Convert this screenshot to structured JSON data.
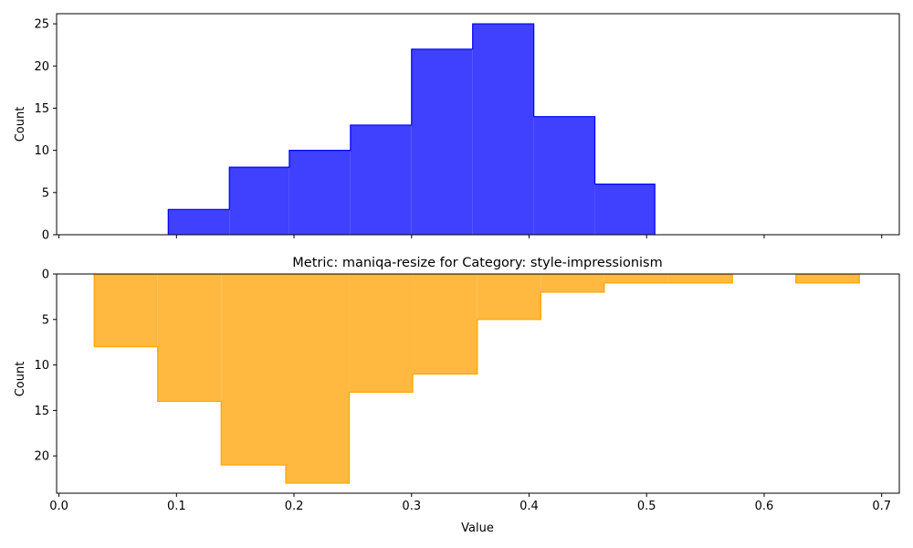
{
  "chart_data": [
    {
      "type": "histogram-step",
      "panel": "top",
      "title": "",
      "xlabel": "",
      "ylabel": "Count",
      "xlim": [
        -0.002,
        0.715
      ],
      "ylim": [
        0,
        26.2
      ],
      "yticks": [
        0,
        5,
        10,
        15,
        20,
        25
      ],
      "y_inverted": false,
      "xticks_labels_visible": false,
      "fill_color": "#4040ff",
      "edge_color": "#0000ff",
      "bins": [
        {
          "x0": 0.093,
          "x1": 0.145,
          "count": 3
        },
        {
          "x0": 0.145,
          "x1": 0.196,
          "count": 8
        },
        {
          "x0": 0.196,
          "x1": 0.248,
          "count": 10
        },
        {
          "x0": 0.248,
          "x1": 0.3,
          "count": 13
        },
        {
          "x0": 0.3,
          "x1": 0.352,
          "count": 22
        },
        {
          "x0": 0.352,
          "x1": 0.404,
          "count": 25
        },
        {
          "x0": 0.404,
          "x1": 0.456,
          "count": 14
        },
        {
          "x0": 0.456,
          "x1": 0.507,
          "count": 6
        }
      ]
    },
    {
      "type": "histogram-step",
      "panel": "bottom",
      "title": "Metric: maniqa-resize for Category: style-impressionism",
      "xlabel": "Value",
      "ylabel": "Count",
      "xlim": [
        -0.002,
        0.715
      ],
      "ylim": [
        0,
        24.1
      ],
      "yticks": [
        0,
        5,
        10,
        15,
        20
      ],
      "y_inverted": true,
      "xticks": [
        0.0,
        0.1,
        0.2,
        0.3,
        0.4,
        0.5,
        0.6,
        0.7
      ],
      "xtick_labels": [
        "0.0",
        "0.1",
        "0.2",
        "0.3",
        "0.4",
        "0.5",
        "0.6",
        "0.7"
      ],
      "fill_color": "#ffb940",
      "edge_color": "#ffa500",
      "bins": [
        {
          "x0": 0.03,
          "x1": 0.084,
          "count": 8
        },
        {
          "x0": 0.084,
          "x1": 0.138,
          "count": 14
        },
        {
          "x0": 0.138,
          "x1": 0.193,
          "count": 21
        },
        {
          "x0": 0.193,
          "x1": 0.247,
          "count": 23
        },
        {
          "x0": 0.247,
          "x1": 0.301,
          "count": 13
        },
        {
          "x0": 0.301,
          "x1": 0.356,
          "count": 11
        },
        {
          "x0": 0.356,
          "x1": 0.41,
          "count": 5
        },
        {
          "x0": 0.41,
          "x1": 0.464,
          "count": 2
        },
        {
          "x0": 0.464,
          "x1": 0.518,
          "count": 1
        },
        {
          "x0": 0.518,
          "x1": 0.573,
          "count": 1
        },
        {
          "x0": 0.573,
          "x1": 0.627,
          "count": 0
        },
        {
          "x0": 0.627,
          "x1": 0.681,
          "count": 1
        }
      ]
    }
  ]
}
